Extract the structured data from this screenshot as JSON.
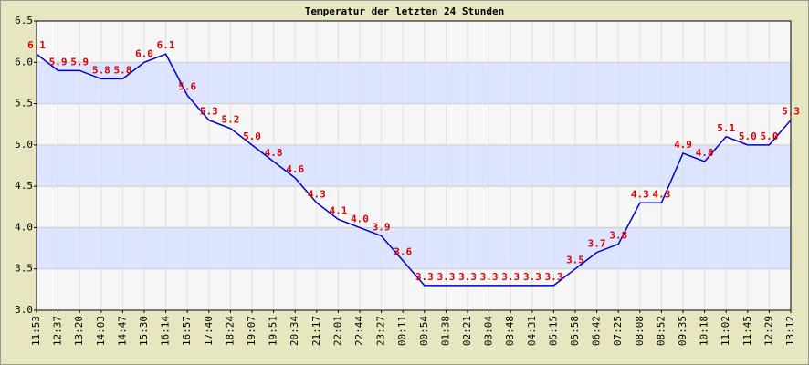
{
  "chart_data": {
    "type": "line",
    "title": "Temperatur der letzten 24 Stunden",
    "categories": [
      "11:53",
      "12:37",
      "13:20",
      "14:03",
      "14:47",
      "15:30",
      "16:14",
      "16:57",
      "17:40",
      "18:24",
      "19:07",
      "19:51",
      "20:34",
      "21:17",
      "22:01",
      "22:44",
      "23:27",
      "00:11",
      "00:54",
      "01:38",
      "02:21",
      "03:04",
      "03:48",
      "04:31",
      "05:15",
      "05:58",
      "06:42",
      "07:25",
      "08:08",
      "08:52",
      "09:35",
      "10:18",
      "11:02",
      "11:45",
      "12:29",
      "13:12"
    ],
    "values": [
      6.1,
      5.9,
      5.9,
      5.8,
      5.8,
      6.0,
      6.1,
      5.6,
      5.3,
      5.2,
      5.0,
      4.8,
      4.6,
      4.3,
      4.1,
      4.0,
      3.9,
      3.6,
      3.3,
      3.3,
      3.3,
      3.3,
      3.3,
      3.3,
      3.3,
      3.5,
      3.7,
      3.8,
      4.3,
      4.3,
      4.9,
      4.8,
      5.1,
      5.0,
      5.0,
      5.3
    ],
    "value_labels": [
      "6.1",
      "5.9",
      "5.9",
      "5.8",
      "5.8",
      "6.0",
      "6.1",
      "5.6",
      "5.3",
      "5.2",
      "5.0",
      "4.8",
      "4.6",
      "4.3",
      "4.1",
      "4.0",
      "3.9",
      "3.6",
      "3.3",
      "3.3",
      "3.3",
      "3.3",
      "3.3",
      "3.3",
      "3.3",
      "3.5",
      "3.7",
      "3.8",
      "4.3",
      "4.3",
      "4.9",
      "4.8",
      "5.1",
      "5.0",
      "5.0",
      "5.3"
    ],
    "color": "#0000cc",
    "label_color": "#dd0000",
    "ylim": [
      3.0,
      6.5
    ],
    "yticks": [
      {
        "value": 3.0,
        "label": "3.0"
      },
      3.5,
      {
        "value": 4.0,
        "label": "4.0"
      },
      4.5,
      {
        "value": 5.0,
        "label": "5.0"
      },
      5.5,
      {
        "value": 6.0,
        "label": "6.0"
      },
      6.5
    ],
    "grid": true
  }
}
